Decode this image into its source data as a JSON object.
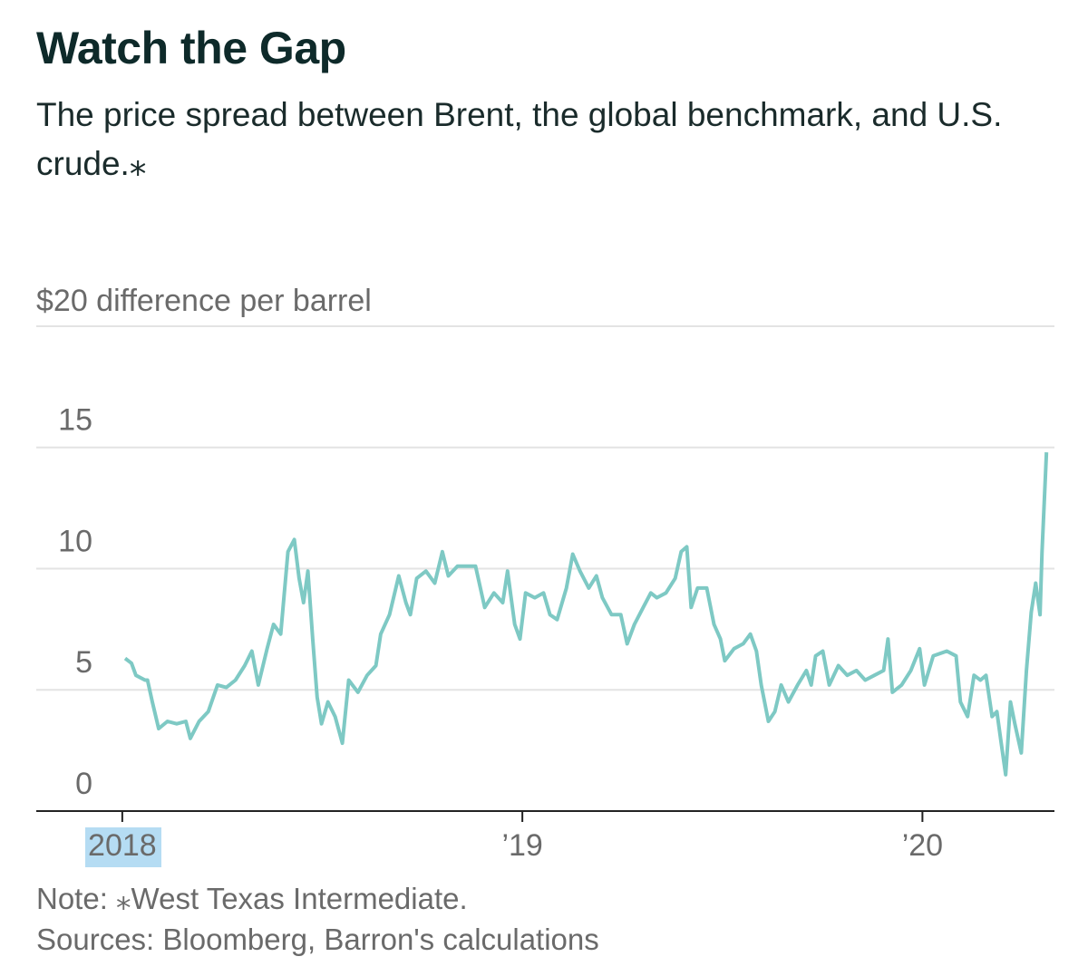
{
  "chart_data": {
    "type": "line",
    "title": "Watch the Gap",
    "subtitle": "The price spread between Brent, the global benchmark, and U.S. crude.⁎",
    "notes": [
      "Note: ⁎West Texas Intermediate.",
      "Sources: Bloomberg, Barron's calculations"
    ],
    "color": "#7ec9c4",
    "grid": true,
    "xlim": [
      2017.785,
      2020.33
    ],
    "xticks": [
      {
        "value": 2018,
        "label": "2018"
      },
      {
        "value": 2019,
        "label": "’19"
      },
      {
        "value": 2020,
        "label": "’20"
      }
    ],
    "ylim": [
      0,
      20
    ],
    "yticks": [
      0,
      5,
      10,
      15,
      {
        "value": 20,
        "label": "$20 difference per barrel"
      }
    ],
    "x": [
      2018.007,
      2018.023,
      2018.034,
      2018.057,
      2018.063,
      2018.075,
      2018.091,
      2018.113,
      2018.136,
      2018.159,
      2018.17,
      2018.192,
      2018.215,
      2018.238,
      2018.26,
      2018.283,
      2018.306,
      2018.324,
      2018.34,
      2018.362,
      2018.378,
      2018.396,
      2018.414,
      2018.43,
      2018.442,
      2018.453,
      2018.464,
      2018.476,
      2018.487,
      2018.498,
      2018.514,
      2018.532,
      2018.55,
      2018.566,
      2018.589,
      2018.612,
      2018.634,
      2018.646,
      2018.668,
      2018.691,
      2018.709,
      2018.72,
      2018.736,
      2018.759,
      2018.781,
      2018.8,
      2018.815,
      2018.838,
      2018.861,
      2018.883,
      2018.906,
      2018.929,
      2018.951,
      2018.963,
      2018.981,
      2018.994,
      2019.008,
      2019.031,
      2019.053,
      2019.069,
      2019.087,
      2019.11,
      2019.126,
      2019.144,
      2019.166,
      2019.185,
      2019.2,
      2019.223,
      2019.246,
      2019.262,
      2019.28,
      2019.302,
      2019.321,
      2019.336,
      2019.359,
      2019.382,
      2019.397,
      2019.411,
      2019.422,
      2019.438,
      2019.461,
      2019.479,
      2019.495,
      2019.506,
      2019.529,
      2019.552,
      2019.57,
      2019.585,
      2019.597,
      2019.615,
      2019.631,
      2019.647,
      2019.665,
      2019.688,
      2019.71,
      2019.722,
      2019.733,
      2019.751,
      2019.767,
      2019.79,
      2019.812,
      2019.835,
      2019.857,
      2019.88,
      2019.903,
      2019.914,
      2019.925,
      2019.948,
      2019.971,
      2019.993,
      2020.005,
      2020.027,
      2020.061,
      2020.084,
      2020.095,
      2020.113,
      2020.129,
      2020.145,
      2020.159,
      2020.174,
      2020.186,
      2020.197,
      2020.208,
      2020.22,
      2020.231,
      2020.247,
      2020.26,
      2020.272,
      2020.283,
      2020.294,
      2020.299,
      2020.31
    ],
    "values": [
      6.3,
      6.1,
      5.6,
      5.4,
      5.4,
      4.5,
      3.4,
      3.7,
      3.6,
      3.7,
      3.0,
      3.7,
      4.1,
      5.2,
      5.1,
      5.4,
      6.0,
      6.6,
      5.2,
      6.7,
      7.7,
      7.3,
      10.7,
      11.2,
      9.6,
      8.6,
      9.9,
      7.1,
      4.7,
      3.6,
      4.5,
      3.9,
      2.8,
      5.4,
      4.9,
      5.6,
      6.0,
      7.3,
      8.1,
      9.7,
      8.6,
      8.1,
      9.6,
      9.9,
      9.4,
      10.7,
      9.7,
      10.1,
      10.1,
      10.1,
      8.4,
      9.0,
      8.6,
      9.9,
      7.7,
      7.1,
      9.0,
      8.8,
      9.0,
      8.1,
      7.9,
      9.2,
      10.6,
      9.9,
      9.2,
      9.7,
      8.8,
      8.1,
      8.1,
      6.9,
      7.7,
      8.4,
      9.0,
      8.8,
      9.0,
      9.6,
      10.7,
      10.9,
      8.4,
      9.2,
      9.2,
      7.7,
      7.1,
      6.2,
      6.7,
      6.9,
      7.3,
      6.6,
      5.2,
      3.7,
      4.1,
      5.2,
      4.5,
      5.2,
      5.8,
      5.2,
      6.4,
      6.6,
      5.2,
      6.0,
      5.6,
      5.8,
      5.4,
      5.6,
      5.8,
      7.1,
      4.9,
      5.2,
      5.8,
      6.7,
      5.2,
      6.4,
      6.6,
      6.4,
      4.5,
      3.9,
      5.6,
      5.4,
      5.6,
      3.9,
      4.1,
      2.8,
      1.5,
      4.5,
      3.6,
      2.4,
      5.8,
      8.2,
      9.4,
      8.1,
      10.7,
      14.8
    ]
  }
}
